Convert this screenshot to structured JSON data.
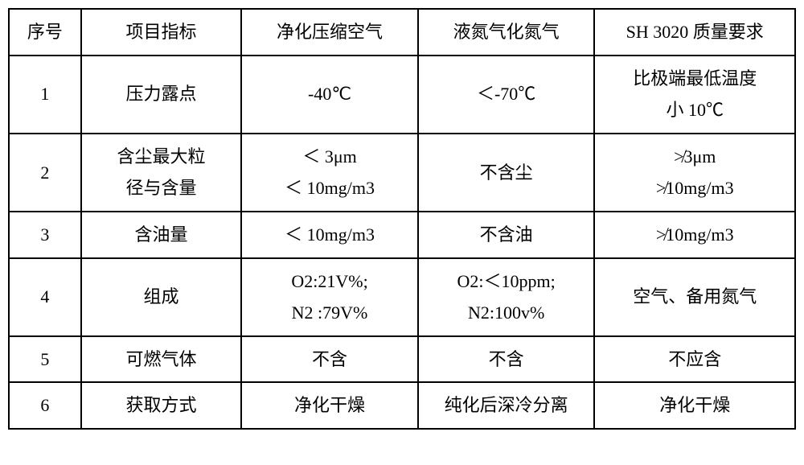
{
  "table": {
    "columns": [
      "序号",
      "项目指标",
      "净化压缩空气",
      "液氮气化氮气",
      "SH 3020 质量要求"
    ],
    "rows": [
      {
        "seq": "1",
        "indicator": "压力露点",
        "compressed": "-40℃",
        "nitrogen": "＜-70℃",
        "sh3020": "比极端最低温度\n小 10℃"
      },
      {
        "seq": "2",
        "indicator": "含尘最大粒\n径与含量",
        "compressed": "＜ 3μm\n＜ 10mg/m3",
        "nitrogen": "不含尘",
        "sh3020": "≯3μm\n≯10mg/m3"
      },
      {
        "seq": "3",
        "indicator": "含油量",
        "compressed": "＜ 10mg/m3",
        "nitrogen": "不含油",
        "sh3020": "≯10mg/m3"
      },
      {
        "seq": "4",
        "indicator": "组成",
        "compressed": "O2:21V%;\nN2 :79V%",
        "nitrogen": "O2:＜10ppm;\nN2:100v%",
        "sh3020": "空气、备用氮气"
      },
      {
        "seq": "5",
        "indicator": "可燃气体",
        "compressed": "不含",
        "nitrogen": "不含",
        "sh3020": "不应含"
      },
      {
        "seq": "6",
        "indicator": "获取方式",
        "compressed": "净化干燥",
        "nitrogen": "纯化后深冷分离",
        "sh3020": "净化干燥"
      }
    ],
    "border_color": "#000000",
    "background_color": "#ffffff",
    "font_family": "SimSun",
    "font_size": 22
  }
}
